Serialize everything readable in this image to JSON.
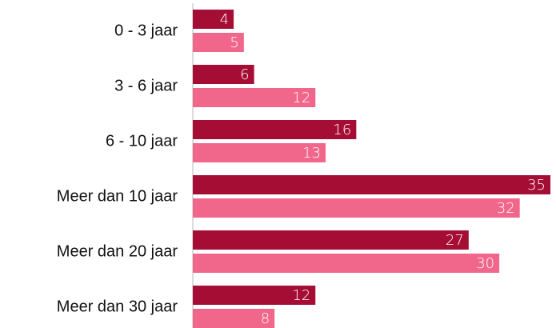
{
  "chart_data": {
    "type": "bar",
    "orientation": "horizontal",
    "categories": [
      "0 - 3 jaar",
      "3 - 6 jaar",
      "6 - 10 jaar",
      "Meer dan 10 jaar",
      "Meer dan 20 jaar",
      "Meer dan 30 jaar"
    ],
    "series": [
      {
        "color": "#a50d34",
        "values": [
          4,
          6,
          16,
          35,
          27,
          12
        ]
      },
      {
        "color": "#f1668b",
        "values": [
          5,
          12,
          13,
          32,
          30,
          8
        ]
      }
    ],
    "xlim": [
      0,
      35
    ]
  }
}
